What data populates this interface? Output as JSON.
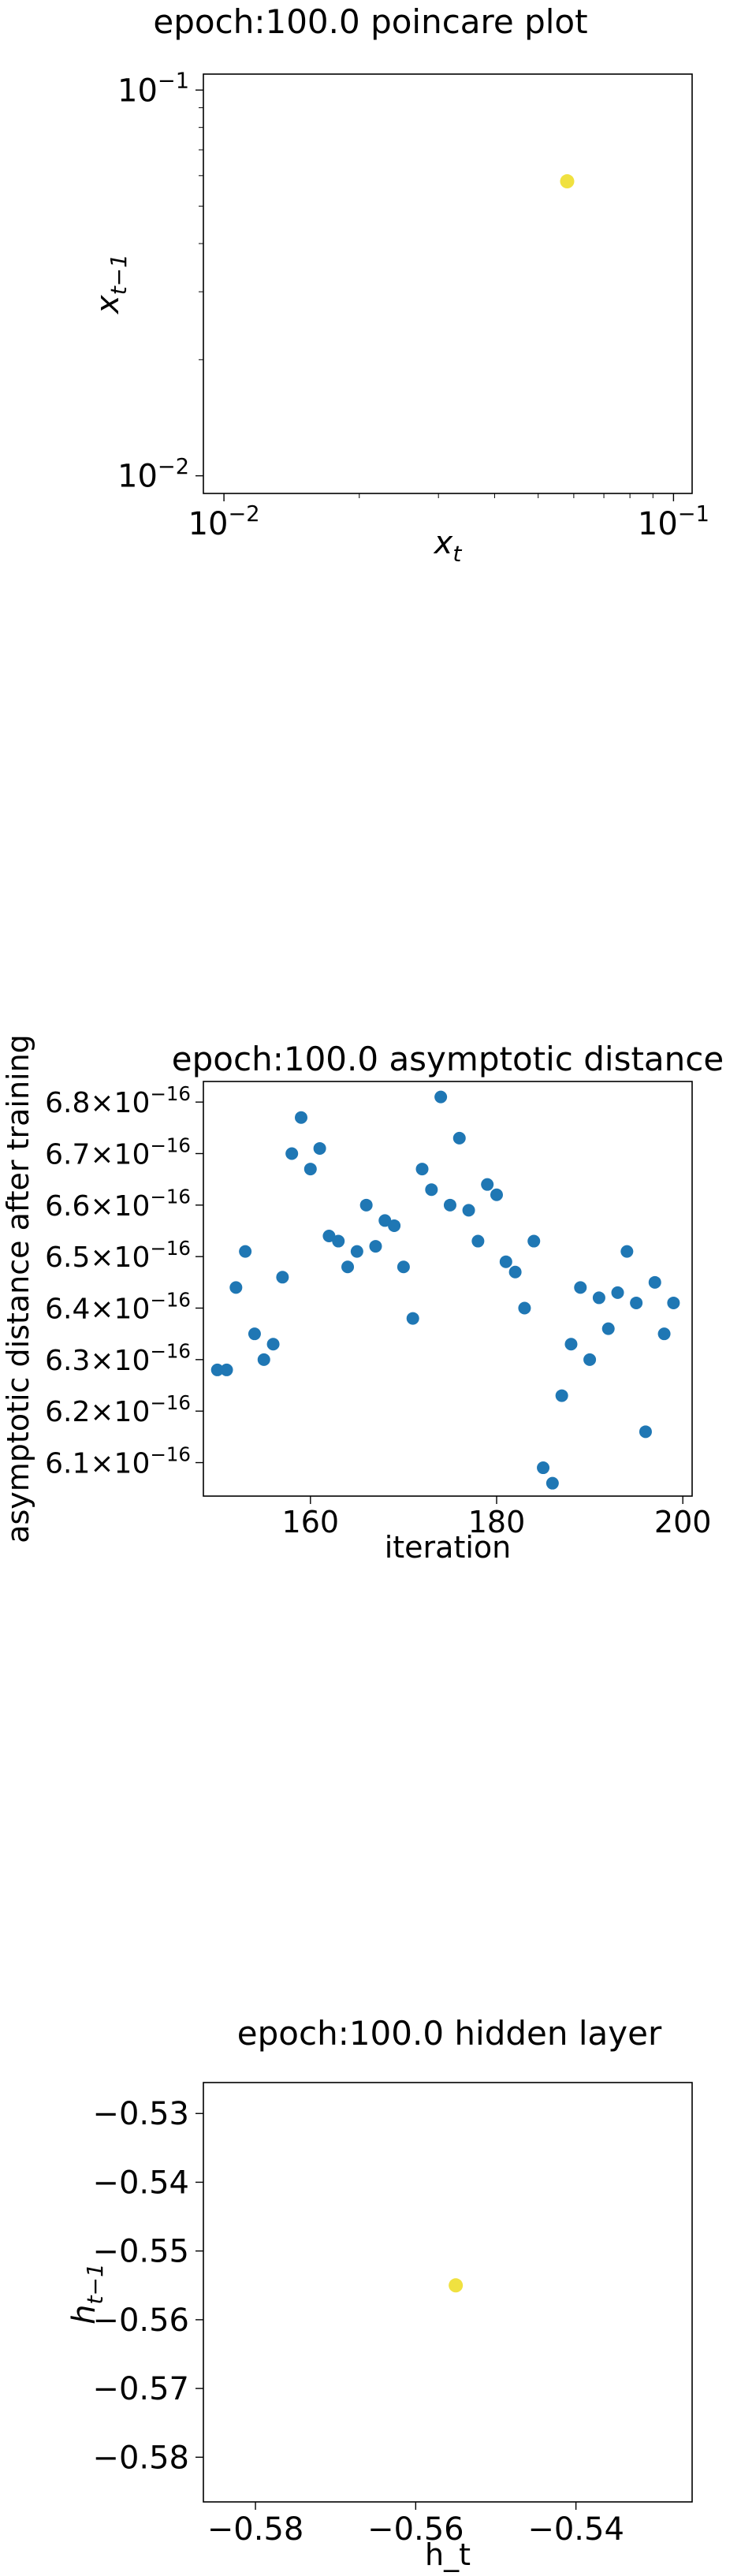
{
  "chart_data": [
    {
      "type": "scatter",
      "title": "epoch:100.0 poincare plot",
      "xlabel_base": "x",
      "xlabel_sub": "t",
      "ylabel_base": "x",
      "ylabel_sub": "t−1",
      "xscale": "log",
      "yscale": "log",
      "xlim": [
        0.009,
        0.11
      ],
      "ylim": [
        0.009,
        0.11
      ],
      "xticks": [
        {
          "value": 0.01,
          "base": "10",
          "exp": "−2"
        },
        {
          "value": 0.1,
          "base": "10",
          "exp": "−1"
        }
      ],
      "yticks": [
        {
          "value": 0.01,
          "base": "10",
          "exp": "−2"
        },
        {
          "value": 0.1,
          "base": "10",
          "exp": "−1"
        }
      ],
      "points": [
        {
          "x": 0.058,
          "y": 0.058
        }
      ],
      "point_color": "#f0e140",
      "grid": false,
      "legend": "none"
    },
    {
      "type": "scatter",
      "title": "epoch:100.0 asymptotic distance",
      "xlabel": "iteration",
      "ylabel": "asymptotic distance after training",
      "xlim": [
        148.5,
        201
      ],
      "ylim": [
        6.035e-16,
        6.84e-16
      ],
      "xticks": [
        {
          "value": 160,
          "label": "160"
        },
        {
          "value": 180,
          "label": "180"
        },
        {
          "value": 200,
          "label": "200"
        }
      ],
      "yticks": [
        {
          "value": 6.1e-16,
          "mant": "6.1",
          "base": "10",
          "exp": "−16"
        },
        {
          "value": 6.2e-16,
          "mant": "6.2",
          "base": "10",
          "exp": "−16"
        },
        {
          "value": 6.3e-16,
          "mant": "6.3",
          "base": "10",
          "exp": "−16"
        },
        {
          "value": 6.4e-16,
          "mant": "6.4",
          "base": "10",
          "exp": "−16"
        },
        {
          "value": 6.5e-16,
          "mant": "6.5",
          "base": "10",
          "exp": "−16"
        },
        {
          "value": 6.6e-16,
          "mant": "6.6",
          "base": "10",
          "exp": "−16"
        },
        {
          "value": 6.7e-16,
          "mant": "6.7",
          "base": "10",
          "exp": "−16"
        },
        {
          "value": 6.8e-16,
          "mant": "6.8",
          "base": "10",
          "exp": "−16"
        }
      ],
      "x": [
        150,
        151,
        152,
        153,
        154,
        155,
        156,
        157,
        158,
        159,
        160,
        161,
        162,
        163,
        164,
        165,
        166,
        167,
        168,
        169,
        170,
        171,
        172,
        173,
        174,
        175,
        176,
        177,
        178,
        179,
        180,
        181,
        182,
        183,
        184,
        185,
        186,
        187,
        188,
        189,
        190,
        191,
        192,
        193,
        194,
        195,
        196,
        197,
        198,
        199
      ],
      "y": [
        6.28e-16,
        6.28e-16,
        6.44e-16,
        6.51e-16,
        6.35e-16,
        6.3e-16,
        6.33e-16,
        6.46e-16,
        6.7e-16,
        6.77e-16,
        6.67e-16,
        6.71e-16,
        6.54e-16,
        6.53e-16,
        6.48e-16,
        6.51e-16,
        6.6e-16,
        6.52e-16,
        6.57e-16,
        6.56e-16,
        6.48e-16,
        6.38e-16,
        6.67e-16,
        6.63e-16,
        6.81e-16,
        6.6e-16,
        6.73e-16,
        6.59e-16,
        6.53e-16,
        6.64e-16,
        6.62e-16,
        6.49e-16,
        6.47e-16,
        6.4e-16,
        6.53e-16,
        6.09e-16,
        6.06e-16,
        6.23e-16,
        6.33e-16,
        6.44e-16,
        6.3e-16,
        6.42e-16,
        6.36e-16,
        6.43e-16,
        6.51e-16,
        6.41e-16,
        6.16e-16,
        6.45e-16,
        6.35e-16,
        6.41e-16
      ],
      "point_color": "#1f77b4",
      "grid": false,
      "legend": "none"
    },
    {
      "type": "scatter",
      "title": "epoch:100.0 hidden layer",
      "xlabel": "h_t",
      "ylabel_base": "h",
      "ylabel_sub": "t−1",
      "xlim": [
        -0.5865,
        -0.5255
      ],
      "ylim": [
        -0.5865,
        -0.5255
      ],
      "xticks": [
        {
          "value": -0.58,
          "label": "−0.58"
        },
        {
          "value": -0.56,
          "label": "−0.56"
        },
        {
          "value": -0.54,
          "label": "−0.54"
        }
      ],
      "yticks": [
        {
          "value": -0.58,
          "label": "−0.58"
        },
        {
          "value": -0.57,
          "label": "−0.57"
        },
        {
          "value": -0.56,
          "label": "−0.56"
        },
        {
          "value": -0.55,
          "label": "−0.55"
        },
        {
          "value": -0.54,
          "label": "−0.54"
        },
        {
          "value": -0.53,
          "label": "−0.53"
        }
      ],
      "points": [
        {
          "x": -0.555,
          "y": -0.555
        }
      ],
      "point_color": "#f0e140",
      "grid": false,
      "legend": "none"
    }
  ]
}
